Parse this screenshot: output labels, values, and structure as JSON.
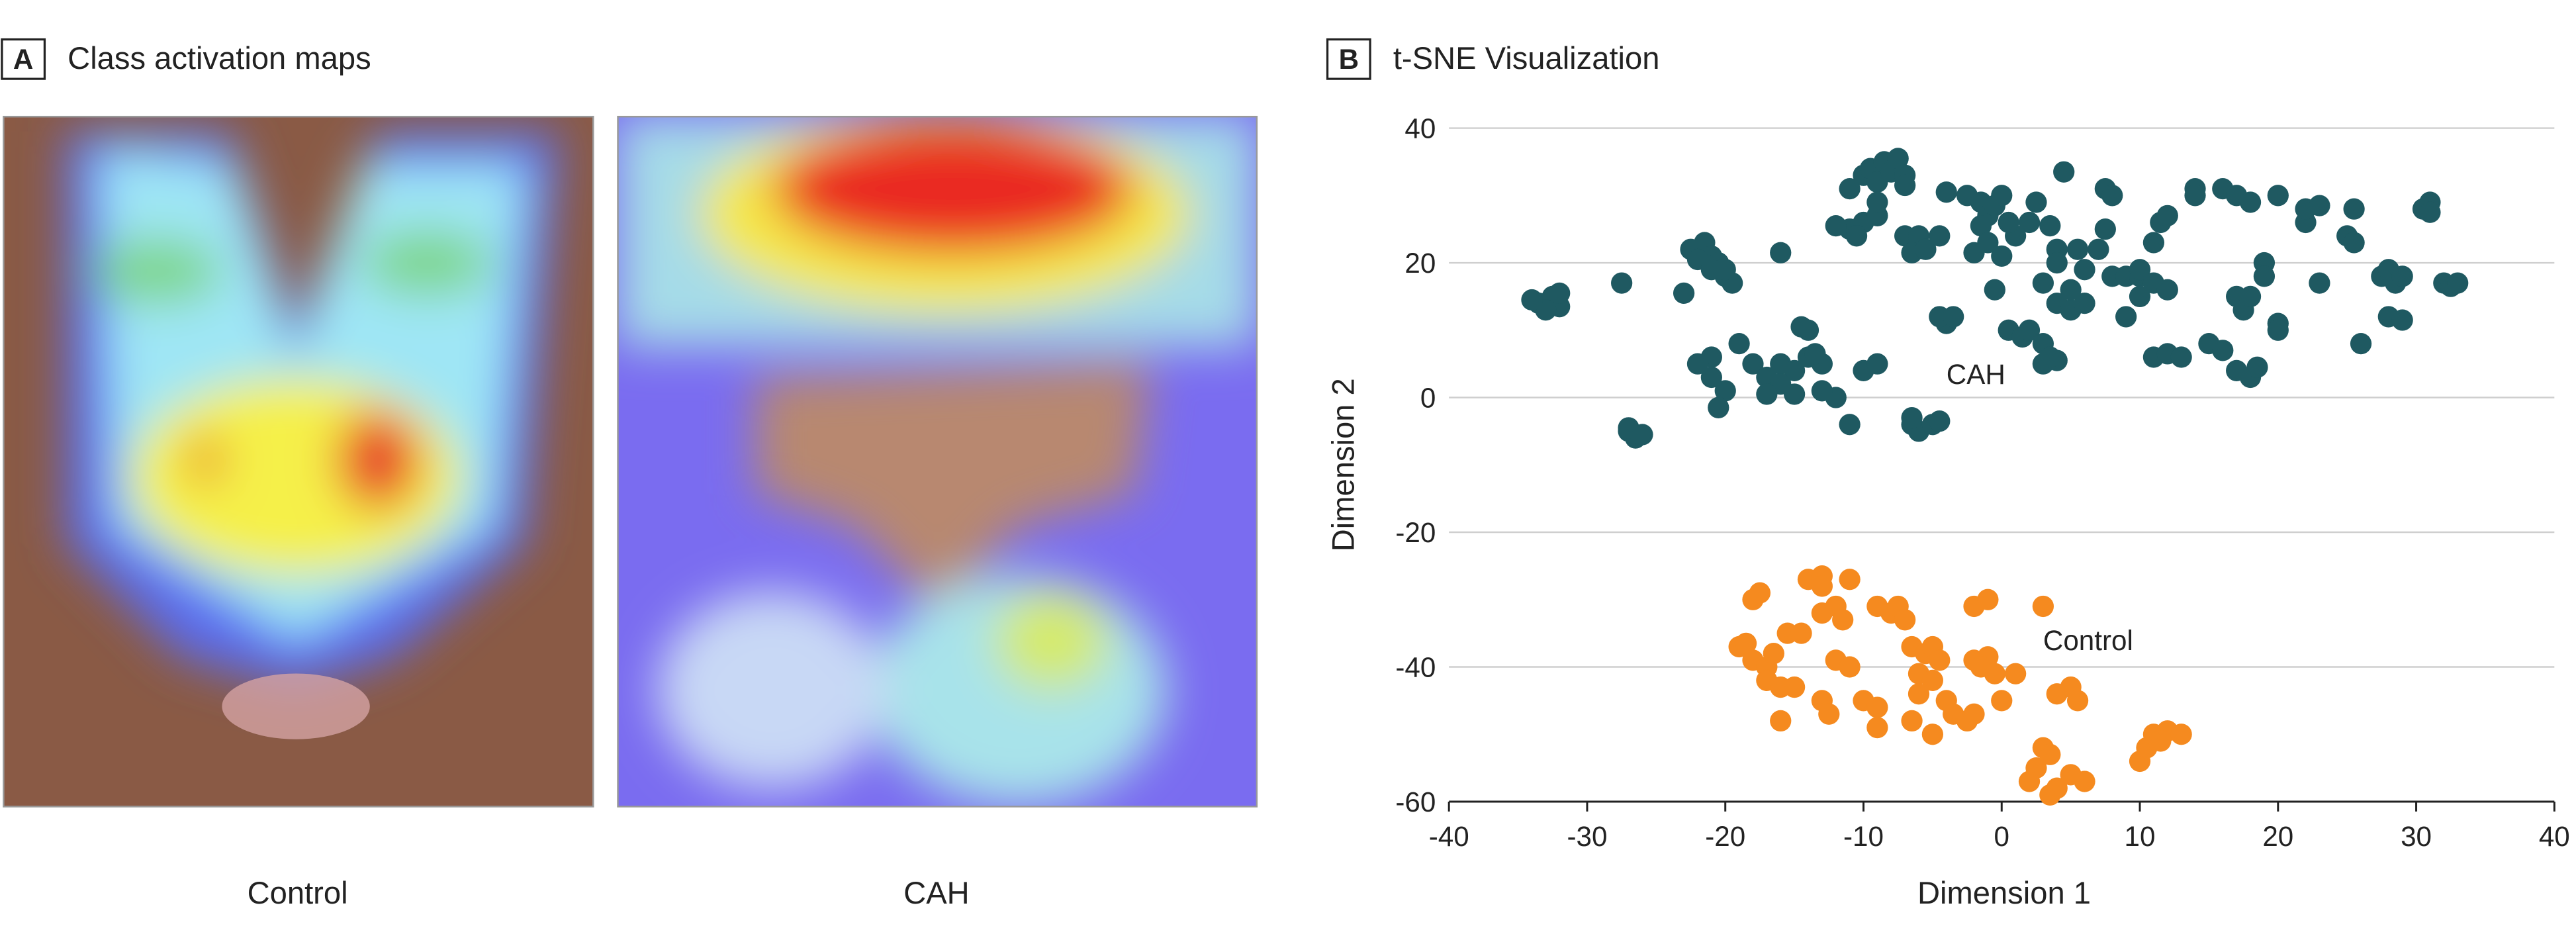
{
  "panel_a": {
    "label": "A",
    "title": "Class activation maps",
    "captions": [
      "Control",
      "CAH"
    ]
  },
  "chart_data": {
    "type": "scatter",
    "label": "B",
    "title": "t-SNE Visualization",
    "x_label": "Dimension 1",
    "y_label": "Dimension 2",
    "xlim": [
      -40,
      40
    ],
    "ylim": [
      -60,
      40
    ],
    "xticks": [
      -40,
      -30,
      -20,
      -10,
      0,
      10,
      20,
      30,
      40
    ],
    "yticks": [
      -60,
      -40,
      -20,
      0,
      20,
      40
    ],
    "grid": true,
    "series": [
      {
        "name": "CAH",
        "color": "#1f5961",
        "x": [
          -33.5,
          -32.5,
          -32,
          -33,
          -34,
          -32,
          -27.5,
          -27,
          -26.5,
          -27,
          -26,
          -23,
          -22.5,
          -21.5,
          -21,
          -20.5,
          -20,
          -19.5,
          -20,
          -22,
          -21,
          -21,
          -22,
          -21,
          -20,
          -20.5,
          -19,
          -18,
          -17,
          -16,
          -15,
          -16,
          -14,
          -13,
          -14,
          -14.5,
          -13.5,
          -12,
          -11,
          -13,
          -17,
          -15,
          -16,
          -11,
          -12,
          -10,
          -9,
          -10.5,
          -11,
          -10,
          -9.5,
          -9,
          -8.5,
          -8,
          -7.5,
          -7,
          -9,
          -7,
          -7,
          -6,
          -6.5,
          -5.5,
          -4.5,
          -10,
          -9,
          -6.5,
          -6,
          -6.5,
          -5,
          -4.5,
          -4,
          -4.5,
          -3.5,
          -4,
          -2.5,
          -1.5,
          -1,
          -0.5,
          0,
          -1.5,
          -1,
          0,
          1,
          -2,
          0.5,
          -0.5,
          0.5,
          1.5,
          2,
          3,
          3,
          4,
          3.5,
          2.5,
          2,
          3.5,
          4,
          4,
          3,
          4,
          5,
          6,
          6,
          5.5,
          7,
          7.5,
          7.5,
          8,
          4.5,
          5,
          8,
          9,
          10,
          10,
          9,
          10,
          11,
          11,
          11.5,
          12,
          12,
          11,
          12,
          13,
          14,
          14,
          15,
          16,
          16,
          17,
          18,
          17,
          17.5,
          18,
          17,
          18,
          18.5,
          19,
          19,
          20,
          20,
          20,
          22,
          22,
          23,
          23,
          25,
          25.5,
          25.5,
          26,
          27.5,
          28,
          28.5,
          28,
          29,
          29,
          30.5,
          31,
          31,
          32,
          32.5,
          33
        ],
        "y": [
          14,
          15,
          13.5,
          13,
          14.5,
          15.5,
          17,
          -5,
          -6,
          -4.5,
          -5.5,
          15.5,
          22,
          23,
          21,
          20,
          18,
          17,
          19,
          20.5,
          19,
          6,
          5,
          3,
          1,
          -1.5,
          8,
          5,
          3,
          5,
          4,
          2,
          6,
          5,
          10,
          10.5,
          6.5,
          0,
          -4,
          1,
          0.5,
          0.5,
          21.5,
          25,
          25.5,
          26,
          27,
          24,
          31,
          33,
          34,
          32,
          35,
          33.5,
          35.5,
          33,
          29,
          31.5,
          24,
          24,
          21.5,
          22,
          24,
          4,
          5,
          -4,
          -5,
          -3,
          -4,
          -3.5,
          11,
          12,
          12,
          30.5,
          30,
          29,
          27,
          28.5,
          30,
          25.5,
          23,
          21,
          24,
          21.5,
          26,
          16,
          10,
          9,
          10,
          8,
          5,
          5.5,
          6,
          29,
          26,
          25.5,
          22,
          20,
          17,
          14,
          13,
          14,
          19,
          22,
          22,
          25,
          31,
          30,
          33.5,
          16,
          18,
          18,
          18,
          19,
          12,
          15,
          17,
          23,
          26,
          27,
          16,
          6,
          6.5,
          6,
          31,
          30,
          8,
          7,
          31,
          30,
          29,
          15,
          13,
          15,
          4,
          3,
          4.5,
          20,
          18,
          30,
          11,
          10,
          26,
          28,
          17,
          28.5,
          24,
          28,
          23,
          8,
          18,
          19,
          17,
          12,
          11.5,
          18,
          28,
          29,
          27.5,
          17,
          16.5,
          17
        ]
      },
      {
        "name": "Control",
        "color": "#f58a1f",
        "x": [
          -18,
          -17.5,
          -19,
          -18.5,
          -18,
          -17,
          -16.5,
          -17,
          -16,
          -15,
          -16,
          -15.5,
          -14.5,
          -14,
          -13,
          -13,
          -12,
          -11,
          -13,
          -11.5,
          -12,
          -11,
          -13,
          -12.5,
          -10,
          -9,
          -9,
          -9,
          -8,
          -7.5,
          -7,
          -6.5,
          -5.5,
          -5,
          -4.5,
          -6,
          -5,
          -6,
          -4,
          -3.5,
          -6.5,
          -5,
          -2,
          -1,
          -2,
          -1,
          -1.5,
          -0.5,
          0,
          1,
          -2.5,
          -2,
          3,
          4,
          5,
          5.5,
          3,
          3.5,
          2,
          2.5,
          3.5,
          4,
          5,
          6,
          10,
          10.5,
          11,
          12,
          13,
          11.5
        ],
        "y": [
          -30,
          -29,
          -37,
          -36.5,
          -39,
          -40,
          -38,
          -42,
          -43,
          -43,
          -48,
          -35,
          -35,
          -27,
          -26.5,
          -28,
          -31,
          -27,
          -32,
          -33,
          -39,
          -40,
          -45,
          -47,
          -45,
          -46,
          -49,
          -31,
          -32,
          -31,
          -33,
          -37,
          -38,
          -37,
          -39,
          -41,
          -42,
          -44,
          -45,
          -47,
          -48,
          -50,
          -31,
          -30,
          -39,
          -38.5,
          -40,
          -41,
          -45,
          -41,
          -48,
          -47,
          -31,
          -44,
          -43,
          -45,
          -52,
          -53,
          -57,
          -55,
          -59,
          -58,
          -56,
          -57,
          -54,
          -52,
          -50,
          -49.5,
          -50,
          -51
        ]
      }
    ]
  }
}
